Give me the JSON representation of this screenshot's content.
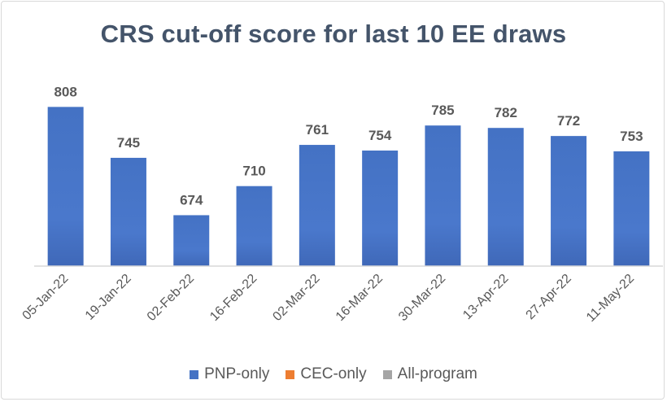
{
  "chart_data": {
    "type": "bar",
    "title": "CRS cut-off score for last 10 EE draws",
    "categories": [
      "05-Jan-22",
      "19-Jan-22",
      "02-Feb-22",
      "16-Feb-22",
      "02-Mar-22",
      "16-Mar-22",
      "30-Mar-22",
      "13-Apr-22",
      "27-Apr-22",
      "11-May-22"
    ],
    "series": [
      {
        "name": "PNP-only",
        "color": "#4472c4",
        "values": [
          808,
          745,
          674,
          710,
          761,
          754,
          785,
          782,
          772,
          753
        ]
      },
      {
        "name": "CEC-only",
        "color": "#ed7d31",
        "values": [
          null,
          null,
          null,
          null,
          null,
          null,
          null,
          null,
          null,
          null
        ]
      },
      {
        "name": "All-program",
        "color": "#a5a5a5",
        "values": [
          null,
          null,
          null,
          null,
          null,
          null,
          null,
          null,
          null,
          null
        ]
      }
    ],
    "data_labels": true,
    "axis_color": "#d9d9d9",
    "label_color": "#595959",
    "grid": false,
    "legend_position": "bottom"
  }
}
